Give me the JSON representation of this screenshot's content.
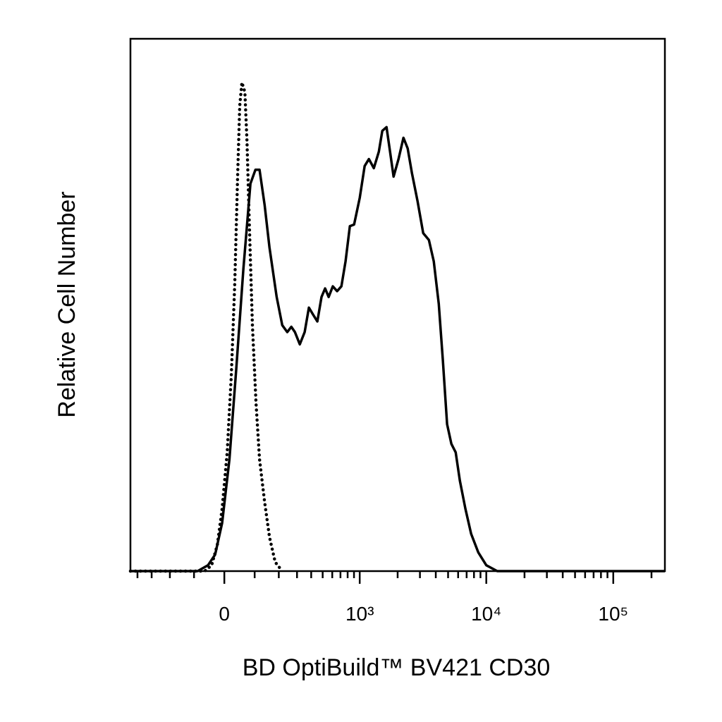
{
  "chart_data": {
    "type": "line",
    "xlabel": "BD OptiBuild™ BV421 CD30",
    "ylabel": "Relative Cell Number",
    "xscale": "biexponential",
    "xlim": [
      -459,
      255000
    ],
    "ylim": [
      0,
      100
    ],
    "xticks": [
      0,
      {
        "value": 1000,
        "label": "10³"
      },
      {
        "value": 10000,
        "label": "10⁴"
      },
      {
        "value": 100000,
        "label": "10⁵"
      }
    ],
    "xminorticks": [
      -400,
      -300,
      -200,
      -100,
      100,
      200,
      300,
      400,
      500,
      600,
      700,
      800,
      900,
      2000,
      3000,
      4000,
      5000,
      6000,
      7000,
      8000,
      9000,
      20000,
      30000,
      40000,
      50000,
      60000,
      70000,
      80000,
      90000,
      200000
    ],
    "series": [
      {
        "color": "#000000",
        "style": "solid",
        "x": [
          -459,
          -87,
          -52,
          -29,
          -7,
          16,
          38,
          61,
          85,
          103,
          118,
          138,
          158,
          190,
          217,
          243,
          266,
          287,
          318,
          351,
          382,
          415,
          451,
          489,
          524,
          560,
          606,
          657,
          712,
          770,
          834,
          901,
          1000,
          1095,
          1183,
          1296,
          1419,
          1512,
          1633,
          1742,
          1858,
          2033,
          2223,
          2401,
          2593,
          2872,
          3183,
          3529,
          3858,
          4221,
          4550,
          4913,
          5311,
          5744,
          6193,
          6851,
          7595,
          8650,
          10000,
          12197,
          255000
        ],
        "values": [
          0,
          0,
          1.1,
          3.1,
          9.0,
          21.0,
          38.2,
          56.8,
          72.8,
          75.4,
          75.4,
          68.8,
          60.8,
          51.5,
          46.2,
          44.9,
          45.9,
          44.9,
          42.6,
          44.9,
          49.5,
          48.2,
          46.9,
          51.5,
          53.1,
          51.5,
          53.5,
          52.6,
          53.5,
          58.2,
          64.8,
          65.1,
          70.1,
          76.1,
          77.4,
          75.7,
          78.8,
          82.7,
          83.4,
          78.8,
          74.1,
          77.4,
          81.4,
          79.4,
          74.8,
          69.5,
          63.5,
          62.2,
          58.2,
          50.2,
          39.6,
          27.6,
          23.9,
          22.3,
          17.0,
          11.7,
          7.0,
          3.5,
          1.1,
          0,
          0
        ]
      },
      {
        "color": "#000000",
        "style": "dotted",
        "x": [
          -459,
          -63,
          -40,
          -22,
          -7,
          9,
          22,
          33,
          42,
          49,
          56,
          66,
          73,
          82,
          92,
          105,
          118,
          138,
          158,
          183,
          217
        ],
        "values": [
          0,
          0,
          1.1,
          5.0,
          11.7,
          22.3,
          36.9,
          54.2,
          74.1,
          87.4,
          91.8,
          90.0,
          80.7,
          63.5,
          46.2,
          31.6,
          21.0,
          13.0,
          6.4,
          1.7,
          0
        ]
      }
    ]
  }
}
